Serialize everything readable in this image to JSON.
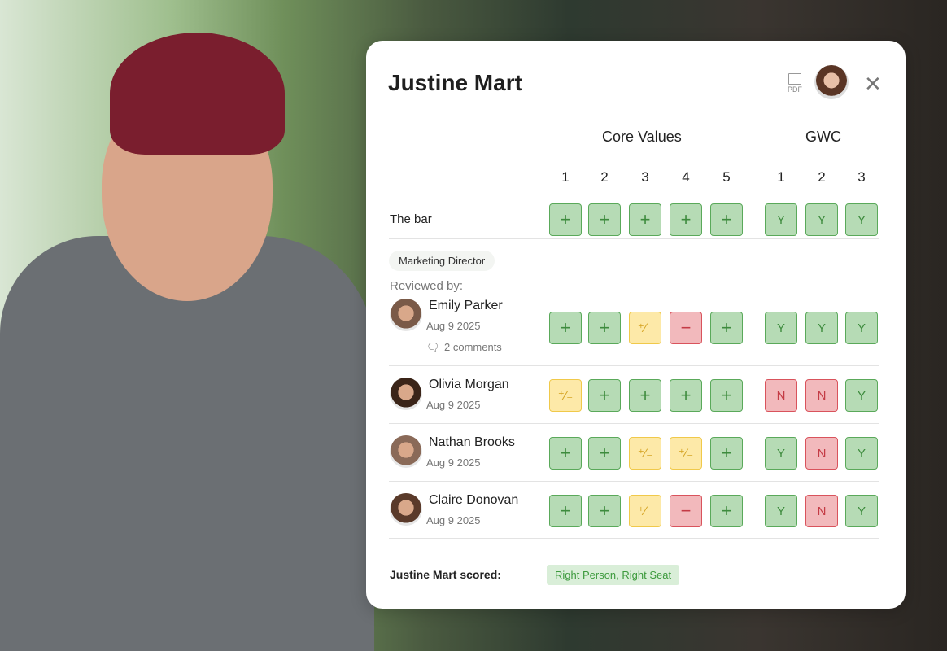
{
  "title": "Justine Mart",
  "pdf_label": "PDF",
  "headers": {
    "core_values": "Core Values",
    "gwc": "GWC",
    "core_nums": [
      "1",
      "2",
      "3",
      "4",
      "5"
    ],
    "gwc_nums": [
      "1",
      "2",
      "3"
    ]
  },
  "bar": {
    "label": "The bar",
    "core": [
      "+",
      "+",
      "+",
      "+",
      "+"
    ],
    "gwc": [
      "Y",
      "Y",
      "Y"
    ]
  },
  "role": "Marketing Director",
  "reviewed_by": "Reviewed by:",
  "reviewers": [
    {
      "name": "Emily Parker",
      "date": "Aug 9 2025",
      "comments": "2 comments",
      "core": [
        "+",
        "+",
        "+/-",
        "-",
        "+"
      ],
      "gwc": [
        "Y",
        "Y",
        "Y"
      ]
    },
    {
      "name": "Olivia Morgan",
      "date": "Aug 9 2025",
      "core": [
        "+/-",
        "+",
        "+",
        "+",
        "+"
      ],
      "gwc": [
        "N",
        "N",
        "Y"
      ]
    },
    {
      "name": "Nathan Brooks",
      "date": "Aug 9 2025",
      "core": [
        "+",
        "+",
        "+/-",
        "+/-",
        "+"
      ],
      "gwc": [
        "Y",
        "N",
        "Y"
      ]
    },
    {
      "name": "Claire Donovan",
      "date": "Aug 9 2025",
      "core": [
        "+",
        "+",
        "+/-",
        "-",
        "+"
      ],
      "gwc": [
        "Y",
        "N",
        "Y"
      ]
    }
  ],
  "score": {
    "label": "Justine Mart scored:",
    "value": "Right Person, Right Seat"
  },
  "colors": {
    "plus": "#b6dbb5",
    "mixed": "#fde9a8",
    "minus": "#f2b9bc"
  }
}
